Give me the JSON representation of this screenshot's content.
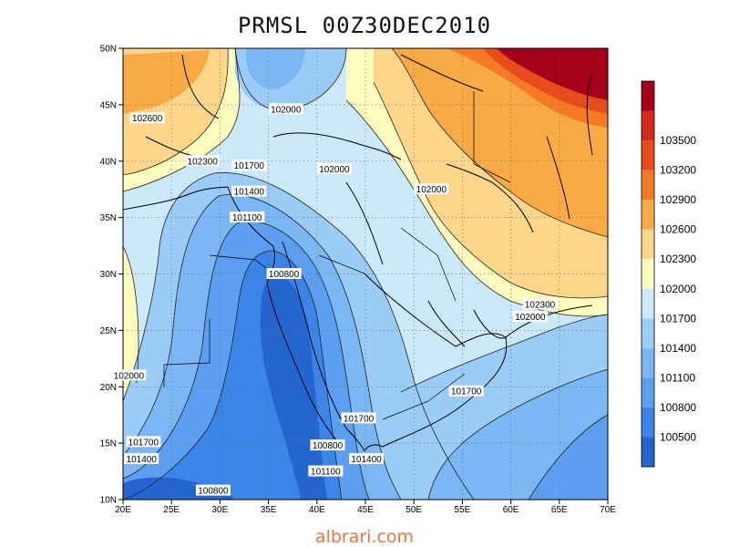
{
  "title": "PRMSL 00Z30DEC2010",
  "watermark": "albrari.com",
  "map": {
    "lon_range": [
      20,
      70
    ],
    "lat_range": [
      10,
      50
    ],
    "lon_ticks": [
      "20E",
      "25E",
      "30E",
      "35E",
      "40E",
      "45E",
      "50E",
      "55E",
      "60E",
      "65E",
      "70E"
    ],
    "lat_ticks": [
      "10N",
      "15N",
      "20N",
      "25N",
      "30N",
      "35N",
      "40N",
      "45N",
      "50N"
    ],
    "grid": "dotted"
  },
  "contour_labels": [
    {
      "text": "102600",
      "lon": 22.5,
      "lat": 43.8
    },
    {
      "text": "102300",
      "lon": 28.2,
      "lat": 40.0
    },
    {
      "text": "101700",
      "lon": 33.0,
      "lat": 39.6
    },
    {
      "text": "101400",
      "lon": 33.0,
      "lat": 37.3
    },
    {
      "text": "101100",
      "lon": 32.8,
      "lat": 35.0
    },
    {
      "text": "102000",
      "lon": 36.8,
      "lat": 44.6
    },
    {
      "text": "102000",
      "lon": 41.8,
      "lat": 39.3
    },
    {
      "text": "102000",
      "lon": 51.8,
      "lat": 37.5
    },
    {
      "text": "100800",
      "lon": 36.6,
      "lat": 30.0
    },
    {
      "text": "102300",
      "lon": 63.0,
      "lat": 27.3
    },
    {
      "text": "102000",
      "lon": 62.0,
      "lat": 26.2
    },
    {
      "text": "102000",
      "lon": 20.6,
      "lat": 21.0
    },
    {
      "text": "101700",
      "lon": 55.4,
      "lat": 19.6
    },
    {
      "text": "101700",
      "lon": 44.3,
      "lat": 17.2
    },
    {
      "text": "101700",
      "lon": 22.1,
      "lat": 15.1
    },
    {
      "text": "101400",
      "lon": 21.9,
      "lat": 13.6
    },
    {
      "text": "100800",
      "lon": 41.1,
      "lat": 14.8
    },
    {
      "text": "101400",
      "lon": 45.1,
      "lat": 13.6
    },
    {
      "text": "101100",
      "lon": 40.9,
      "lat": 12.5
    },
    {
      "text": "100800",
      "lon": 29.3,
      "lat": 10.8
    }
  ],
  "colorbar": {
    "levels": [
      "100500",
      "100800",
      "101100",
      "101400",
      "101700",
      "102000",
      "102300",
      "102600",
      "102900",
      "103200",
      "103500"
    ],
    "colors": [
      "#2565cf",
      "#3c85e8",
      "#5c9ef0",
      "#7bb6f5",
      "#9bcbf7",
      "#cbe9fb",
      "#fefbbf",
      "#fdd68b",
      "#f8aa45",
      "#f47a24",
      "#e84c1c",
      "#d42a1c",
      "#a5001a"
    ]
  }
}
